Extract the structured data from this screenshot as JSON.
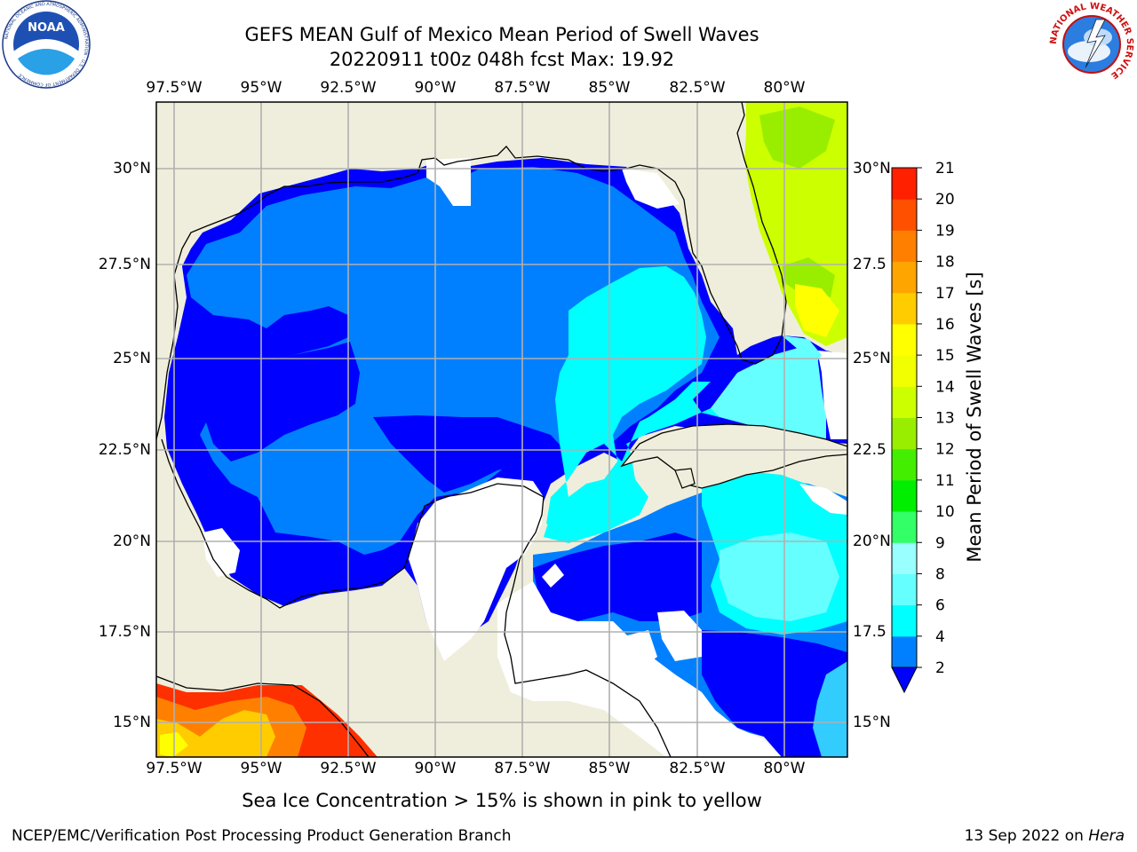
{
  "title": {
    "line1": "GEFS MEAN Gulf of Mexico Mean Period of Swell Waves",
    "line2": "20220911 t00z 048h fcst   Max: 19.92"
  },
  "logos": {
    "left": "noaa-logo",
    "left_text": "NOAA",
    "left_ring_text": "NATIONAL OCEANIC AND ATMOSPHERIC ADMINISTRATION · U.S. DEPARTMENT OF COMMERCE",
    "right": "nws-logo",
    "right_ring_text": "NATIONAL WEATHER SERVICE"
  },
  "map": {
    "lon_labels": [
      "97.5°W",
      "95°W",
      "92.5°W",
      "90°W",
      "87.5°W",
      "85°W",
      "82.5°W",
      "80°W"
    ],
    "lat_labels_left": [
      "30°N",
      "27.5°N",
      "25°N",
      "22.5°N",
      "20°N",
      "17.5°N",
      "15°N"
    ],
    "lat_labels_right": [
      "30°N",
      "27.5",
      "25°N",
      "22.5",
      "20°N",
      "17.5",
      "15°N"
    ],
    "colors": {
      "land": "#efeedc",
      "grid": "#b0b0b0",
      "coast": "#000000"
    }
  },
  "colorbar": {
    "title": "Mean Period of Swell Waves [s]",
    "ticks": [
      "2",
      "4",
      "6",
      "8",
      "9",
      "10",
      "11",
      "12",
      "13",
      "14",
      "15",
      "16",
      "17",
      "18",
      "19",
      "20",
      "21"
    ],
    "colors": [
      "#0000ff",
      "#0080ff",
      "#00ffff",
      "#66ffff",
      "#99ffff",
      "#33ff66",
      "#00ee00",
      "#44ee00",
      "#99ee00",
      "#ccff00",
      "#f2ff00",
      "#ffff00",
      "#ffcc00",
      "#ffa500",
      "#ff8000",
      "#ff5000",
      "#ff2000",
      "#ff0000"
    ]
  },
  "footnote": "Sea Ice Concentration > 15% is shown in pink to yellow",
  "footer": {
    "left": "NCEP/EMC/Verification Post Processing Product Generation Branch",
    "right_date": "13 Sep 2022 on ",
    "right_host": "Hera"
  }
}
